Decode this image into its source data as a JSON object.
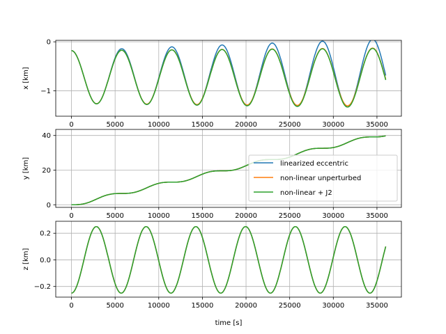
{
  "chart_data": [
    {
      "type": "line",
      "ylabel": "x [km]",
      "xlabel": "",
      "xlim": [
        -1800,
        37800
      ],
      "ylim": [
        -1.52,
        0.03
      ],
      "xticks": [
        0,
        5000,
        10000,
        15000,
        20000,
        25000,
        30000,
        35000
      ],
      "yticks": [
        -1,
        0
      ],
      "grid": true,
      "model": {
        "kind": "sine",
        "period": 5750,
        "amp": -0.54,
        "offset": -0.72,
        "drift": 0,
        "amp_growth": {
          "linearized eccentric": 4.5e-06,
          "non-linear unperturbed": 1.5e-06,
          "non-linear + J2": 1.8e-06
        },
        "offset_shift": {
          "linearized eccentric": 2.2e-06,
          "non-linear unperturbed": 0,
          "non-linear + J2": -5e-07
        }
      },
      "series": [
        {
          "name": "linearized eccentric",
          "color": "#1f77b4"
        },
        {
          "name": "non-linear unperturbed",
          "color": "#ff7f0e"
        },
        {
          "name": "non-linear + J2",
          "color": "#2ca02c"
        }
      ]
    },
    {
      "type": "line",
      "ylabel": "y [km]",
      "xlabel": "",
      "xlim": [
        -1800,
        37800
      ],
      "ylim": [
        -1.5,
        43.5
      ],
      "xticks": [
        0,
        5000,
        10000,
        15000,
        20000,
        25000,
        30000,
        35000
      ],
      "yticks": [
        0,
        20,
        40
      ],
      "grid": true,
      "legend": "center-right",
      "model": {
        "kind": "staircase",
        "period": 5750,
        "rate": 0.001135,
        "amp": 1.04
      },
      "series": [
        {
          "name": "linearized eccentric",
          "color": "#1f77b4"
        },
        {
          "name": "non-linear unperturbed",
          "color": "#ff7f0e"
        },
        {
          "name": "non-linear + J2",
          "color": "#2ca02c"
        }
      ]
    },
    {
      "type": "line",
      "ylabel": "z [km]",
      "xlabel": "time [s]",
      "xlim": [
        -1800,
        37800
      ],
      "ylim": [
        -0.28,
        0.29
      ],
      "xticks": [
        0,
        5000,
        10000,
        15000,
        20000,
        25000,
        30000,
        35000
      ],
      "yticks": [
        -0.2,
        0.0,
        0.2
      ],
      "grid": true,
      "model": {
        "kind": "cos",
        "period": 5700,
        "amp": 0.25
      },
      "series": [
        {
          "name": "linearized eccentric",
          "color": "#1f77b4"
        },
        {
          "name": "non-linear unperturbed",
          "color": "#ff7f0e"
        },
        {
          "name": "non-linear + J2",
          "color": "#2ca02c"
        }
      ]
    }
  ],
  "tick_text": {
    "x": [
      "0",
      "5000",
      "10000",
      "15000",
      "20000",
      "25000",
      "30000",
      "35000"
    ],
    "y0": [
      "−1",
      "0"
    ],
    "y1": [
      "0",
      "20",
      "40"
    ],
    "y2": [
      "−0.2",
      "0.0",
      "0.2"
    ]
  },
  "legend_entries": [
    "linearized eccentric",
    "non-linear unperturbed",
    "non-linear + J2"
  ]
}
